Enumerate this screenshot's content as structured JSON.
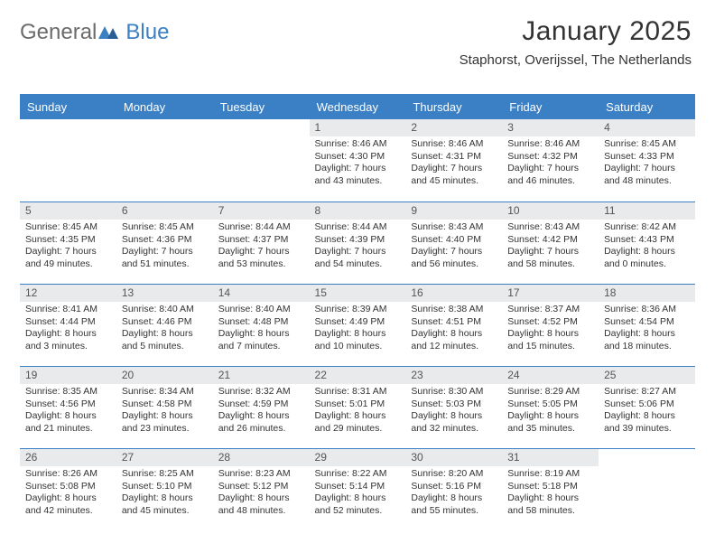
{
  "logo": {
    "word1": "General",
    "word2": "Blue"
  },
  "header": {
    "title": "January 2025",
    "subtitle": "Staphorst, Overijssel, The Netherlands"
  },
  "colors": {
    "accent": "#3b7fc4",
    "daybar": "#e8eaec",
    "text": "#333333",
    "logo_gray": "#6b6b6b"
  },
  "weekdays": [
    "Sunday",
    "Monday",
    "Tuesday",
    "Wednesday",
    "Thursday",
    "Friday",
    "Saturday"
  ],
  "first_weekday_index": 3,
  "days": [
    {
      "n": "1",
      "sunrise": "8:46 AM",
      "sunset": "4:30 PM",
      "dl1": "7 hours",
      "dl2": "and 43 minutes."
    },
    {
      "n": "2",
      "sunrise": "8:46 AM",
      "sunset": "4:31 PM",
      "dl1": "7 hours",
      "dl2": "and 45 minutes."
    },
    {
      "n": "3",
      "sunrise": "8:46 AM",
      "sunset": "4:32 PM",
      "dl1": "7 hours",
      "dl2": "and 46 minutes."
    },
    {
      "n": "4",
      "sunrise": "8:45 AM",
      "sunset": "4:33 PM",
      "dl1": "7 hours",
      "dl2": "and 48 minutes."
    },
    {
      "n": "5",
      "sunrise": "8:45 AM",
      "sunset": "4:35 PM",
      "dl1": "7 hours",
      "dl2": "and 49 minutes."
    },
    {
      "n": "6",
      "sunrise": "8:45 AM",
      "sunset": "4:36 PM",
      "dl1": "7 hours",
      "dl2": "and 51 minutes."
    },
    {
      "n": "7",
      "sunrise": "8:44 AM",
      "sunset": "4:37 PM",
      "dl1": "7 hours",
      "dl2": "and 53 minutes."
    },
    {
      "n": "8",
      "sunrise": "8:44 AM",
      "sunset": "4:39 PM",
      "dl1": "7 hours",
      "dl2": "and 54 minutes."
    },
    {
      "n": "9",
      "sunrise": "8:43 AM",
      "sunset": "4:40 PM",
      "dl1": "7 hours",
      "dl2": "and 56 minutes."
    },
    {
      "n": "10",
      "sunrise": "8:43 AM",
      "sunset": "4:42 PM",
      "dl1": "7 hours",
      "dl2": "and 58 minutes."
    },
    {
      "n": "11",
      "sunrise": "8:42 AM",
      "sunset": "4:43 PM",
      "dl1": "8 hours",
      "dl2": "and 0 minutes."
    },
    {
      "n": "12",
      "sunrise": "8:41 AM",
      "sunset": "4:44 PM",
      "dl1": "8 hours",
      "dl2": "and 3 minutes."
    },
    {
      "n": "13",
      "sunrise": "8:40 AM",
      "sunset": "4:46 PM",
      "dl1": "8 hours",
      "dl2": "and 5 minutes."
    },
    {
      "n": "14",
      "sunrise": "8:40 AM",
      "sunset": "4:48 PM",
      "dl1": "8 hours",
      "dl2": "and 7 minutes."
    },
    {
      "n": "15",
      "sunrise": "8:39 AM",
      "sunset": "4:49 PM",
      "dl1": "8 hours",
      "dl2": "and 10 minutes."
    },
    {
      "n": "16",
      "sunrise": "8:38 AM",
      "sunset": "4:51 PM",
      "dl1": "8 hours",
      "dl2": "and 12 minutes."
    },
    {
      "n": "17",
      "sunrise": "8:37 AM",
      "sunset": "4:52 PM",
      "dl1": "8 hours",
      "dl2": "and 15 minutes."
    },
    {
      "n": "18",
      "sunrise": "8:36 AM",
      "sunset": "4:54 PM",
      "dl1": "8 hours",
      "dl2": "and 18 minutes."
    },
    {
      "n": "19",
      "sunrise": "8:35 AM",
      "sunset": "4:56 PM",
      "dl1": "8 hours",
      "dl2": "and 21 minutes."
    },
    {
      "n": "20",
      "sunrise": "8:34 AM",
      "sunset": "4:58 PM",
      "dl1": "8 hours",
      "dl2": "and 23 minutes."
    },
    {
      "n": "21",
      "sunrise": "8:32 AM",
      "sunset": "4:59 PM",
      "dl1": "8 hours",
      "dl2": "and 26 minutes."
    },
    {
      "n": "22",
      "sunrise": "8:31 AM",
      "sunset": "5:01 PM",
      "dl1": "8 hours",
      "dl2": "and 29 minutes."
    },
    {
      "n": "23",
      "sunrise": "8:30 AM",
      "sunset": "5:03 PM",
      "dl1": "8 hours",
      "dl2": "and 32 minutes."
    },
    {
      "n": "24",
      "sunrise": "8:29 AM",
      "sunset": "5:05 PM",
      "dl1": "8 hours",
      "dl2": "and 35 minutes."
    },
    {
      "n": "25",
      "sunrise": "8:27 AM",
      "sunset": "5:06 PM",
      "dl1": "8 hours",
      "dl2": "and 39 minutes."
    },
    {
      "n": "26",
      "sunrise": "8:26 AM",
      "sunset": "5:08 PM",
      "dl1": "8 hours",
      "dl2": "and 42 minutes."
    },
    {
      "n": "27",
      "sunrise": "8:25 AM",
      "sunset": "5:10 PM",
      "dl1": "8 hours",
      "dl2": "and 45 minutes."
    },
    {
      "n": "28",
      "sunrise": "8:23 AM",
      "sunset": "5:12 PM",
      "dl1": "8 hours",
      "dl2": "and 48 minutes."
    },
    {
      "n": "29",
      "sunrise": "8:22 AM",
      "sunset": "5:14 PM",
      "dl1": "8 hours",
      "dl2": "and 52 minutes."
    },
    {
      "n": "30",
      "sunrise": "8:20 AM",
      "sunset": "5:16 PM",
      "dl1": "8 hours",
      "dl2": "and 55 minutes."
    },
    {
      "n": "31",
      "sunrise": "8:19 AM",
      "sunset": "5:18 PM",
      "dl1": "8 hours",
      "dl2": "and 58 minutes."
    }
  ],
  "labels": {
    "sunrise": "Sunrise:",
    "sunset": "Sunset:",
    "daylight": "Daylight:"
  }
}
